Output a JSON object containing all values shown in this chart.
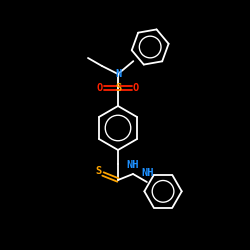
{
  "bg_color": "#000000",
  "bond_color": "#ffffff",
  "atom_colors": {
    "N": "#1e90ff",
    "S": "#ffa500",
    "O": "#ff2200",
    "C": "#ffffff"
  },
  "figsize": [
    2.5,
    2.5
  ],
  "dpi": 100
}
